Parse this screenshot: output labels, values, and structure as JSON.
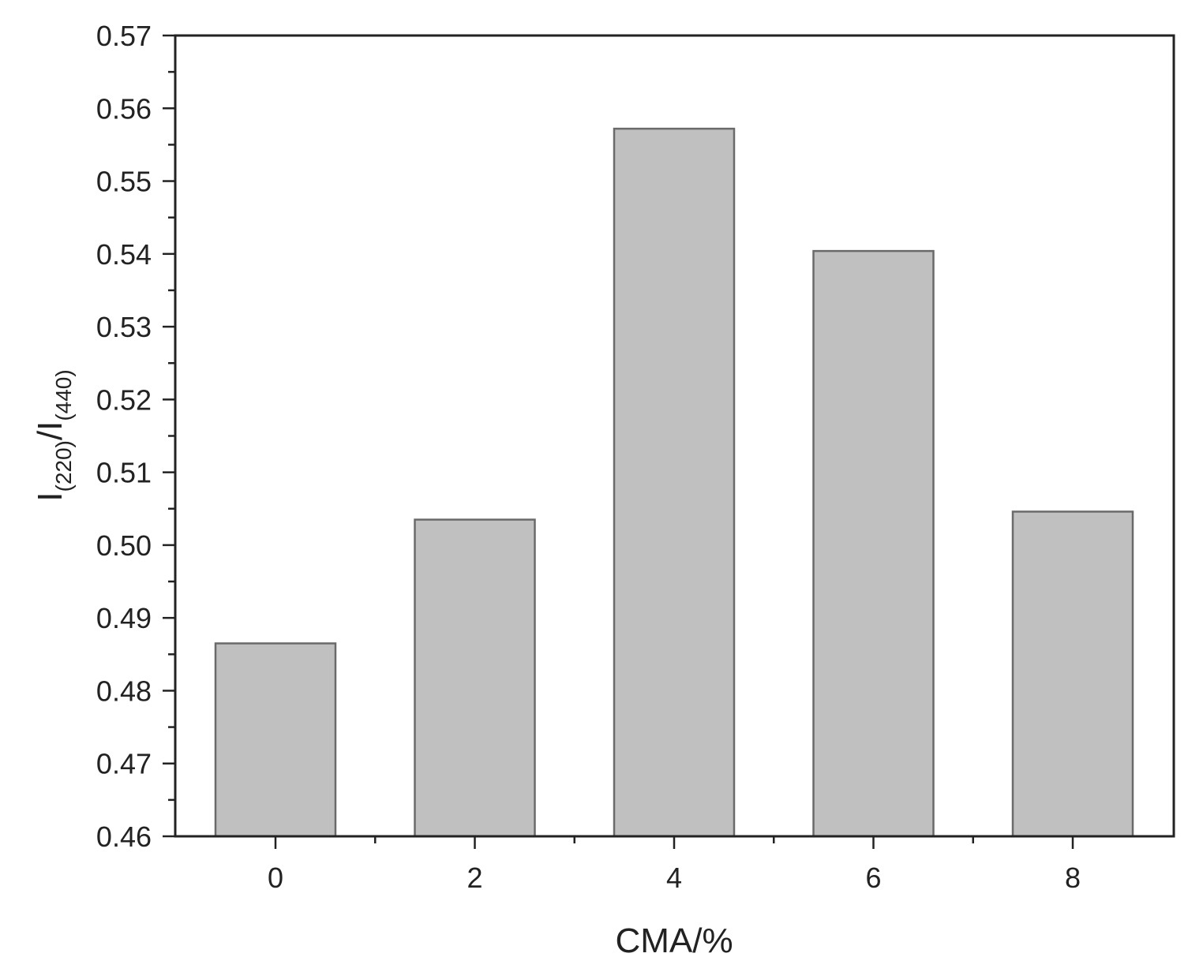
{
  "chart_data": {
    "type": "bar",
    "categories": [
      "0",
      "2",
      "4",
      "6",
      "8"
    ],
    "values": [
      0.4865,
      0.5035,
      0.5572,
      0.5404,
      0.5046
    ],
    "title": "",
    "xlabel": "CMA/%",
    "ylabel": {
      "main1": "I",
      "sub1": "(220)",
      "main2": "/I",
      "sub2": "(440)"
    },
    "ylim": [
      0.46,
      0.57
    ],
    "yticks": [
      "0.46",
      "0.47",
      "0.48",
      "0.49",
      "0.50",
      "0.51",
      "0.52",
      "0.53",
      "0.54",
      "0.55",
      "0.56",
      "0.57"
    ],
    "grid": false,
    "legend": "none",
    "bar_color": "#c0c0c0",
    "bar_edge_color": "#6a6a6a"
  }
}
